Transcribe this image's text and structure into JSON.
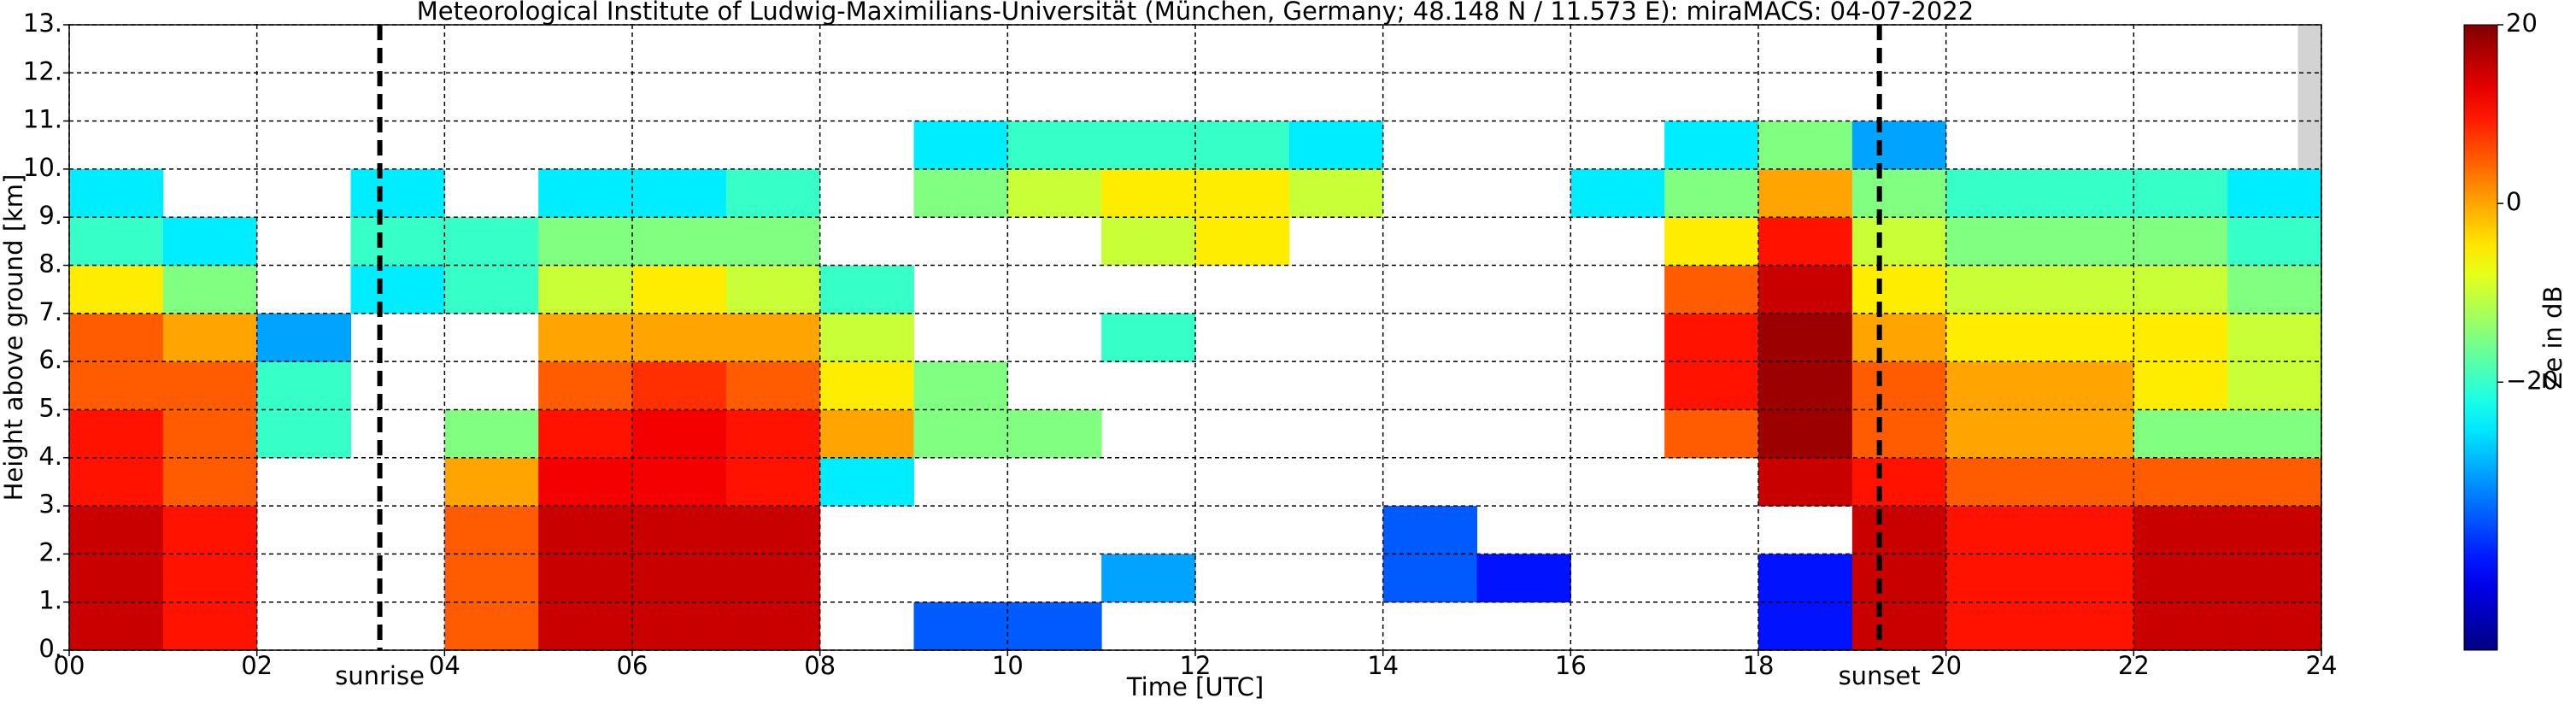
{
  "chart_data": {
    "type": "heatmap",
    "title": "Meteorological Institute of Ludwig-Maximilians-Universität (München, Germany; 48.148 N / 11.573 E):    miraMACS: 04-07-2022",
    "x_label": "Time [UTC]",
    "y_label": "Height above ground [km]",
    "colorbar_label": "Ze in dB",
    "colormap": "jet",
    "clim": [
      -50,
      20
    ],
    "cticks": [
      {
        "value": -20,
        "label": "−20"
      },
      0,
      20
    ],
    "xlim": [
      0,
      24
    ],
    "ylim": [
      0,
      13
    ],
    "xticks": [
      {
        "value": 0,
        "label": "00"
      },
      {
        "value": 2,
        "label": "02"
      },
      {
        "value": 4,
        "label": "04"
      },
      {
        "value": 6,
        "label": "06"
      },
      {
        "value": 8,
        "label": "08"
      },
      {
        "value": 10,
        "label": "10"
      },
      {
        "value": 12,
        "label": "12"
      },
      {
        "value": 14,
        "label": "14"
      },
      {
        "value": 16,
        "label": "16"
      },
      {
        "value": 18,
        "label": "18"
      },
      {
        "value": 20,
        "label": "20"
      },
      {
        "value": 22,
        "label": "22"
      },
      {
        "value": 24,
        "label": "24"
      }
    ],
    "yticks": [
      {
        "value": 0,
        "label": "0."
      },
      {
        "value": 1,
        "label": "1."
      },
      {
        "value": 2,
        "label": "2."
      },
      {
        "value": 3,
        "label": "3."
      },
      {
        "value": 4,
        "label": "4."
      },
      {
        "value": 5,
        "label": "5."
      },
      {
        "value": 6,
        "label": "6."
      },
      {
        "value": 7,
        "label": "7."
      },
      {
        "value": 8,
        "label": "8."
      },
      {
        "value": 9,
        "label": "9."
      },
      {
        "value": 10,
        "label": "10."
      },
      {
        "value": 11,
        "label": "11."
      },
      {
        "value": 12,
        "label": "12."
      },
      {
        "value": 13,
        "label": "13."
      }
    ],
    "grid": true,
    "x_bins": [
      0,
      1,
      2,
      3,
      4,
      5,
      6,
      7,
      8,
      9,
      10,
      11,
      12,
      13,
      14,
      15,
      16,
      17,
      18,
      19,
      20,
      21,
      22,
      23,
      24
    ],
    "y_bins": [
      0,
      1,
      2,
      3,
      4,
      5,
      6,
      7,
      8,
      9,
      10,
      11,
      12,
      13
    ],
    "z": [
      [
        15,
        10,
        null,
        null,
        5,
        15,
        15,
        15,
        null,
        -35,
        -35,
        null,
        null,
        null,
        null,
        null,
        null,
        null,
        -40,
        15,
        10,
        10,
        15,
        15
      ],
      [
        15,
        10,
        null,
        null,
        5,
        15,
        15,
        15,
        null,
        null,
        null,
        -30,
        null,
        null,
        -35,
        -40,
        null,
        null,
        -40,
        15,
        10,
        10,
        15,
        15
      ],
      [
        15,
        10,
        null,
        null,
        5,
        15,
        15,
        15,
        null,
        null,
        null,
        null,
        null,
        null,
        -35,
        null,
        null,
        null,
        null,
        15,
        10,
        10,
        15,
        15
      ],
      [
        10,
        5,
        null,
        null,
        0,
        12,
        12,
        10,
        -25,
        null,
        null,
        null,
        null,
        null,
        null,
        null,
        null,
        null,
        15,
        10,
        5,
        5,
        5,
        5
      ],
      [
        10,
        5,
        -20,
        null,
        -15,
        10,
        12,
        10,
        0,
        -15,
        -15,
        null,
        null,
        null,
        null,
        null,
        null,
        5,
        18,
        5,
        0,
        0,
        -15,
        -15
      ],
      [
        5,
        5,
        -20,
        null,
        null,
        5,
        8,
        5,
        -5,
        -15,
        null,
        null,
        null,
        null,
        null,
        null,
        null,
        10,
        18,
        5,
        0,
        0,
        -5,
        -10
      ],
      [
        5,
        0,
        -30,
        null,
        null,
        0,
        0,
        0,
        -10,
        null,
        null,
        -20,
        null,
        null,
        null,
        null,
        null,
        10,
        18,
        0,
        -5,
        -5,
        -5,
        -10
      ],
      [
        -5,
        -15,
        null,
        -25,
        -20,
        -10,
        -5,
        -10,
        -20,
        null,
        null,
        null,
        null,
        null,
        null,
        null,
        null,
        5,
        15,
        -5,
        -10,
        -10,
        -10,
        -15
      ],
      [
        -20,
        -25,
        null,
        -20,
        -20,
        -15,
        -15,
        -15,
        null,
        null,
        null,
        -10,
        -5,
        null,
        null,
        null,
        null,
        -5,
        10,
        -10,
        -15,
        -15,
        -15,
        -20
      ],
      [
        -25,
        null,
        null,
        -25,
        null,
        -25,
        -25,
        -20,
        null,
        -15,
        -10,
        -5,
        -5,
        -10,
        null,
        null,
        -25,
        -15,
        0,
        -15,
        -20,
        -20,
        -20,
        -25
      ],
      [
        null,
        null,
        null,
        null,
        null,
        null,
        null,
        null,
        null,
        -25,
        -20,
        -20,
        -20,
        -25,
        null,
        null,
        null,
        -25,
        -15,
        -30,
        null,
        null,
        null,
        null
      ],
      [
        null,
        null,
        null,
        null,
        null,
        null,
        null,
        null,
        null,
        null,
        null,
        null,
        null,
        null,
        null,
        null,
        null,
        null,
        null,
        null,
        null,
        null,
        null,
        null
      ],
      [
        null,
        null,
        null,
        null,
        null,
        null,
        null,
        null,
        null,
        null,
        null,
        null,
        null,
        null,
        null,
        null,
        null,
        null,
        null,
        null,
        null,
        null,
        null,
        null
      ]
    ],
    "no_data_range": [
      23.75,
      24
    ],
    "no_data_color": "#d3d3d3",
    "annotations": [
      {
        "x": 3.31,
        "label": "sunrise"
      },
      {
        "x": 19.29,
        "label": "sunset"
      }
    ]
  }
}
